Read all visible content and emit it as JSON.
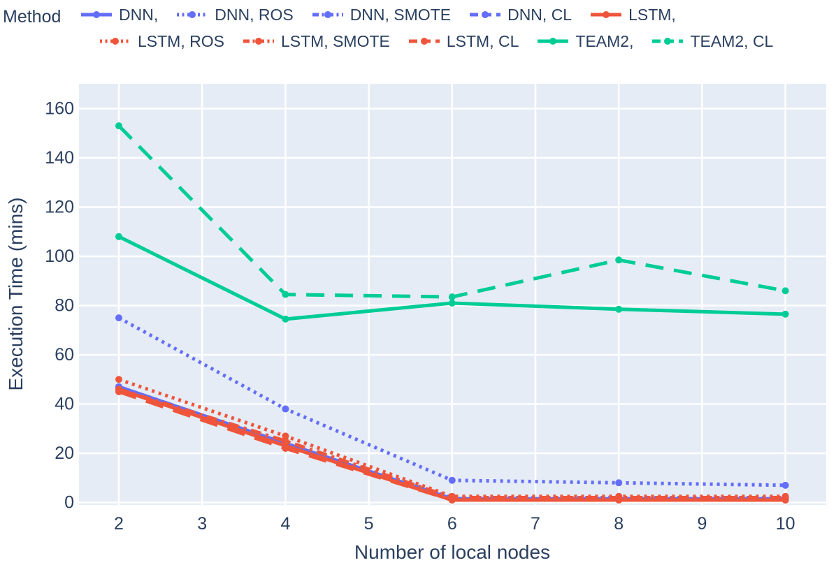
{
  "figure": {
    "background": "#ffffff",
    "plot_background": "#E5ECF6",
    "grid_color": "#ffffff",
    "text_color": "#2a3f5f"
  },
  "legend": {
    "title": "Method",
    "rows": [
      [
        0,
        1,
        2,
        3,
        4
      ],
      [
        5,
        6,
        7,
        8,
        9
      ]
    ]
  },
  "chart_data": {
    "type": "line",
    "title": "",
    "xlabel": "Number of local nodes",
    "ylabel": "Execution Time (mins)",
    "x": [
      2,
      4,
      6,
      8,
      10
    ],
    "x_ticks": [
      2,
      3,
      4,
      5,
      6,
      7,
      8,
      9,
      10
    ],
    "y_ticks": [
      0,
      20,
      40,
      60,
      80,
      100,
      120,
      140,
      160
    ],
    "xlim": [
      1.52,
      10.5
    ],
    "ylim": [
      -1,
      170
    ],
    "grid": true,
    "legend_position": "top",
    "series": [
      {
        "name": "DNN,",
        "color": "#636EFA",
        "dash": "solid",
        "values": [
          47,
          24,
          1.5,
          1.5,
          1.5
        ]
      },
      {
        "name": "DNN, ROS",
        "color": "#636EFA",
        "dash": "dot",
        "values": [
          75,
          38,
          9,
          8,
          7
        ]
      },
      {
        "name": "DNN, SMOTE",
        "color": "#636EFA",
        "dash": "dashdot",
        "values": [
          47,
          24,
          2,
          2,
          2
        ]
      },
      {
        "name": "DNN, CL",
        "color": "#636EFA",
        "dash": "dash",
        "values": [
          46,
          23,
          1.5,
          1.5,
          1.5
        ]
      },
      {
        "name": "LSTM,",
        "color": "#EF553B",
        "dash": "solid",
        "values": [
          46,
          23,
          1,
          1,
          1
        ]
      },
      {
        "name": "LSTM, ROS",
        "color": "#EF553B",
        "dash": "dot",
        "values": [
          50,
          27,
          2.5,
          2.5,
          2.5
        ]
      },
      {
        "name": "LSTM, SMOTE",
        "color": "#EF553B",
        "dash": "dashdot",
        "values": [
          46,
          25,
          2,
          2,
          2
        ]
      },
      {
        "name": "LSTM, CL",
        "color": "#EF553B",
        "dash": "dash",
        "values": [
          45,
          22,
          1,
          1,
          1
        ]
      },
      {
        "name": "TEAM2,",
        "color": "#00CC96",
        "dash": "solid",
        "values": [
          108,
          74.5,
          81,
          78.5,
          76.5
        ]
      },
      {
        "name": "TEAM2, CL",
        "color": "#00CC96",
        "dash": "dash",
        "values": [
          153,
          84.5,
          83.5,
          98.5,
          86
        ]
      }
    ]
  }
}
